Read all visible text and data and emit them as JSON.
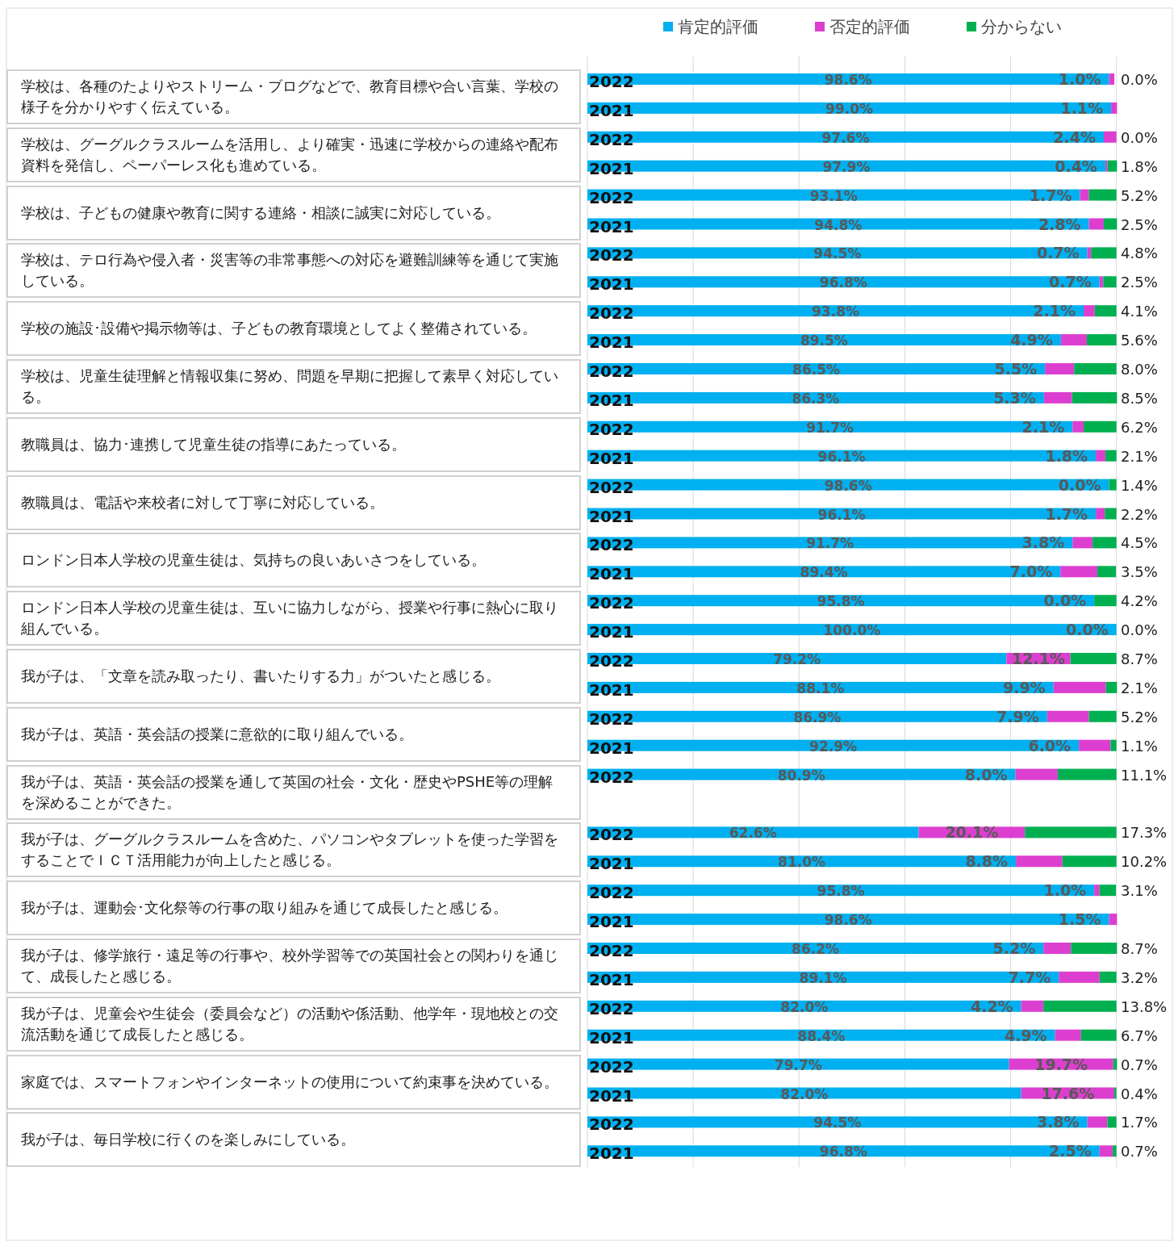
{
  "chart_data": {
    "type": "bar",
    "orientation": "horizontal",
    "stacked": true,
    "grid": "x",
    "legend": "top",
    "categories": [
      "2022",
      "2021",
      "2022",
      "2021",
      "2022",
      "2021",
      "2022",
      "2021",
      "2022",
      "2021",
      "2022",
      "2021",
      "2022",
      "2021",
      "2022",
      "2021",
      "2022",
      "2021",
      "2022",
      "2021",
      "2022",
      "2021",
      "2022",
      "2021",
      "2022",
      null,
      "2022",
      "2021",
      "2022",
      "2021",
      "2022",
      "2021",
      "2022",
      "2021",
      "2022",
      "2021",
      "2022",
      "2021"
    ],
    "xlim": [
      0,
      100.2
    ],
    "xticks": [
      {
        "value": 0,
        "label": null
      },
      {
        "value": 20,
        "label": null
      },
      {
        "value": 40,
        "label": null
      },
      {
        "value": 60,
        "label": null
      },
      {
        "value": 80,
        "label": null
      },
      {
        "value": 100,
        "label": null
      }
    ],
    "series": [
      {
        "name": "肯定的評価",
        "color": "#00b0f0",
        "values": [
          98.6,
          99.0,
          97.6,
          97.9,
          93.1,
          94.8,
          94.5,
          96.8,
          93.8,
          89.5,
          86.5,
          86.3,
          91.7,
          96.1,
          98.6,
          96.1,
          91.7,
          89.4,
          95.8,
          100.0,
          79.2,
          88.1,
          86.9,
          92.9,
          80.9,
          null,
          62.6,
          81.0,
          95.8,
          98.6,
          86.2,
          89.1,
          82.0,
          88.4,
          79.7,
          82.0,
          94.5,
          96.8
        ],
        "value_labels": [
          "98.6%",
          "99.0%",
          "97.6%",
          "97.9%",
          "93.1%",
          "94.8%",
          "94.5%",
          "96.8%",
          "93.8%",
          "89.5%",
          "86.5%",
          "86.3%",
          "91.7%",
          "96.1%",
          "98.6%",
          "96.1%",
          "91.7%",
          "89.4%",
          "95.8%",
          "100.0%",
          "79.2%",
          "88.1%",
          "86.9%",
          "92.9%",
          "80.9%",
          null,
          "62.6%",
          "81.0%",
          "95.8%",
          "98.6%",
          "86.2%",
          "89.1%",
          "82.0%",
          "88.4%",
          "79.7%",
          "82.0%",
          "94.5%",
          "96.8%"
        ]
      },
      {
        "name": "否定的評価",
        "color": "#dc3fd0",
        "values": [
          1.0,
          1.1,
          2.4,
          0.4,
          1.7,
          2.8,
          0.7,
          0.7,
          2.1,
          4.9,
          5.5,
          5.3,
          2.1,
          1.8,
          0.0,
          1.7,
          3.8,
          7.0,
          0.0,
          0.0,
          12.1,
          9.9,
          7.9,
          6.0,
          8.0,
          null,
          20.1,
          8.8,
          1.0,
          1.5,
          5.2,
          7.7,
          4.2,
          4.9,
          19.7,
          17.6,
          3.8,
          2.5
        ],
        "value_labels": [
          "1.0%",
          "1.1%",
          "2.4%",
          "0.4%",
          "1.7%",
          "2.8%",
          "0.7%",
          "0.7%",
          "2.1%",
          "4.9%",
          "5.5%",
          "5.3%",
          "2.1%",
          "1.8%",
          "0.0%",
          "1.7%",
          "3.8%",
          "7.0%",
          "0.0%",
          "0.0%",
          "12.1%",
          "9.9%",
          "7.9%",
          "6.0%",
          "8.0%",
          null,
          "20.1%",
          "8.8%",
          "1.0%",
          "1.5%",
          "5.2%",
          "7.7%",
          "4.2%",
          "4.9%",
          "19.7%",
          "17.6%",
          "3.8%",
          "2.5%"
        ]
      },
      {
        "name": "分からない",
        "color": "#00b050",
        "values": [
          0.0,
          null,
          0.0,
          1.8,
          5.2,
          2.5,
          4.8,
          2.5,
          4.1,
          5.6,
          8.0,
          8.5,
          6.2,
          2.1,
          1.4,
          2.2,
          4.5,
          3.5,
          4.2,
          0.0,
          8.7,
          2.1,
          5.2,
          1.1,
          11.1,
          null,
          17.3,
          10.2,
          3.1,
          null,
          8.7,
          3.2,
          13.8,
          6.7,
          0.7,
          0.4,
          1.7,
          0.7
        ],
        "value_labels": [
          "0.0%",
          null,
          "0.0%",
          "1.8%",
          "5.2%",
          "2.5%",
          "4.8%",
          "2.5%",
          "4.1%",
          "5.6%",
          "8.0%",
          "8.5%",
          "6.2%",
          "2.1%",
          "1.4%",
          "2.2%",
          "4.5%",
          "3.5%",
          "4.2%",
          "0.0%",
          "8.7%",
          "2.1%",
          "5.2%",
          "1.1%",
          "11.1%",
          null,
          "17.3%",
          "10.2%",
          "3.1%",
          null,
          "8.7%",
          "3.2%",
          "13.8%",
          "6.7%",
          "0.7%",
          "0.4%",
          "1.7%",
          "0.7%"
        ]
      }
    ],
    "annotations": [
      "学校は、各種のたよりやストリーム・ブログなどで、教育目標や合い言葉、学校の様子を分かりやすく伝えている。",
      "学校は、グーグルクラスルームを活用し、より確実・迅速に学校からの連絡や配布資料を発信し、ペーパーレス化も進めている。",
      "学校は、子どもの健康や教育に関する連絡・相談に誠実に対応している。",
      "学校は、テロ行為や侵入者・災害等の非常事態への対応を避難訓練等を通じて実施している。",
      "学校の施設･設備や掲示物等は、子どもの教育環境としてよく整備されている。",
      "学校は、児童生徒理解と情報収集に努め、問題を早期に把握して素早く対応している。",
      "教職員は、協力･連携して児童生徒の指導にあたっている。",
      "教職員は、電話や来校者に対して丁寧に対応している。",
      "ロンドン日本人学校の児童生徒は、気持ちの良いあいさつをしている。",
      "ロンドン日本人学校の児童生徒は、互いに協力しながら、授業や行事に熱心に取り組んでいる。",
      "我が子は、「文章を読み取ったり、書いたりする力」がついたと感じる。",
      "我が子は、英語・英会話の授業に意欲的に取り組んでいる。",
      "我が子は、英語・英会話の授業を通して英国の社会・文化・歴史やPSHE等の理解を深めることができた。",
      "我が子は、グーグルクラスルームを含めた、パソコンやタブレットを使った学習をすることでＩＣＴ活用能力が向上したと感じる。",
      "我が子は、運動会･文化祭等の行事の取り組みを通じて成長したと感じる。",
      "我が子は、修学旅行・遠足等の行事や、校外学習等での英国社会との関わりを通じて、成長したと感じる。",
      "我が子は、児童会や生徒会（委員会など）の活動や係活動、他学年・現地校との交流活動を通じて成長したと感じる。",
      "家庭では、スマートフォンやインターネットの使用について約束事を決めている。",
      "我が子は、毎日学校に行くのを楽しみにしている。"
    ]
  }
}
